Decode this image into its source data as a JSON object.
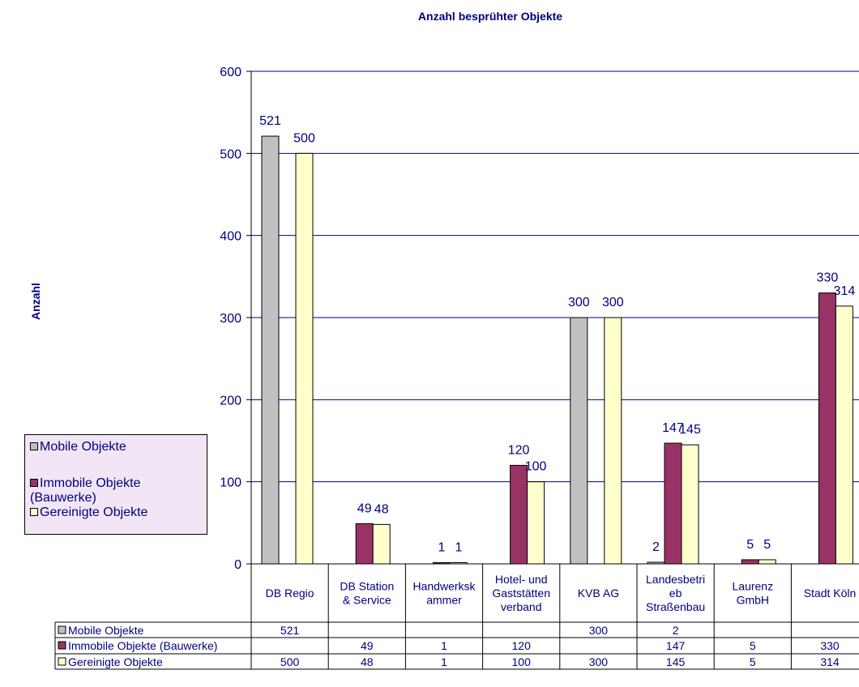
{
  "chart_data": {
    "type": "bar",
    "title": "Anzahl besprühter Objekte",
    "ylabel": "Anzahl",
    "xlabel": "",
    "ylim": [
      0,
      600
    ],
    "yticks": [
      "0",
      "100",
      "200",
      "300",
      "400",
      "500",
      "600"
    ],
    "categories": [
      "DB Regio",
      "DB Station & Service",
      "Handwerkskammer",
      "Hotel- und Gaststätten verband",
      "KVB AG",
      "Landesbetrieb Straßenbau",
      "Laurenz GmbH",
      "Stadt Köln"
    ],
    "category_lines": [
      [
        "DB Regio"
      ],
      [
        "DB Station",
        "& Service"
      ],
      [
        "Handwerksk",
        "ammer"
      ],
      [
        "Hotel- und",
        "Gaststätten",
        "verband"
      ],
      [
        "KVB AG"
      ],
      [
        "Landesbetri",
        "eb",
        "Straßenbau"
      ],
      [
        "Laurenz",
        "GmbH"
      ],
      [
        "Stadt Köln"
      ]
    ],
    "series": [
      {
        "name": "Mobile Objekte",
        "color": "#c0c0c0",
        "values": [
          521,
          null,
          null,
          null,
          300,
          2,
          null,
          null
        ],
        "labels": [
          "521",
          "",
          "",
          "",
          "300",
          "2",
          "",
          ""
        ]
      },
      {
        "name": "Immobile Objekte (Bauwerke)",
        "color": "#993366",
        "values": [
          null,
          49,
          1,
          120,
          null,
          147,
          5,
          330
        ],
        "labels": [
          "",
          "49",
          "1",
          "120",
          "",
          "147",
          "5",
          "330"
        ]
      },
      {
        "name": "Gereinigte Objekte",
        "color": "#ffffcc",
        "values": [
          500,
          48,
          1,
          100,
          300,
          145,
          5,
          314
        ],
        "labels": [
          "500",
          "48",
          "1",
          "100",
          "300",
          "145",
          "5",
          "314"
        ]
      }
    ],
    "gridlines": true,
    "legend_position": "left"
  },
  "legend": {
    "items": [
      {
        "label": "Mobile Objekte",
        "color": "#c0c0c0"
      },
      {
        "label": "Immobile Objekte",
        "label2": "(Bauwerke)",
        "color": "#993366"
      },
      {
        "label": "Gereinigte Objekte",
        "color": "#ffffcc"
      }
    ]
  }
}
